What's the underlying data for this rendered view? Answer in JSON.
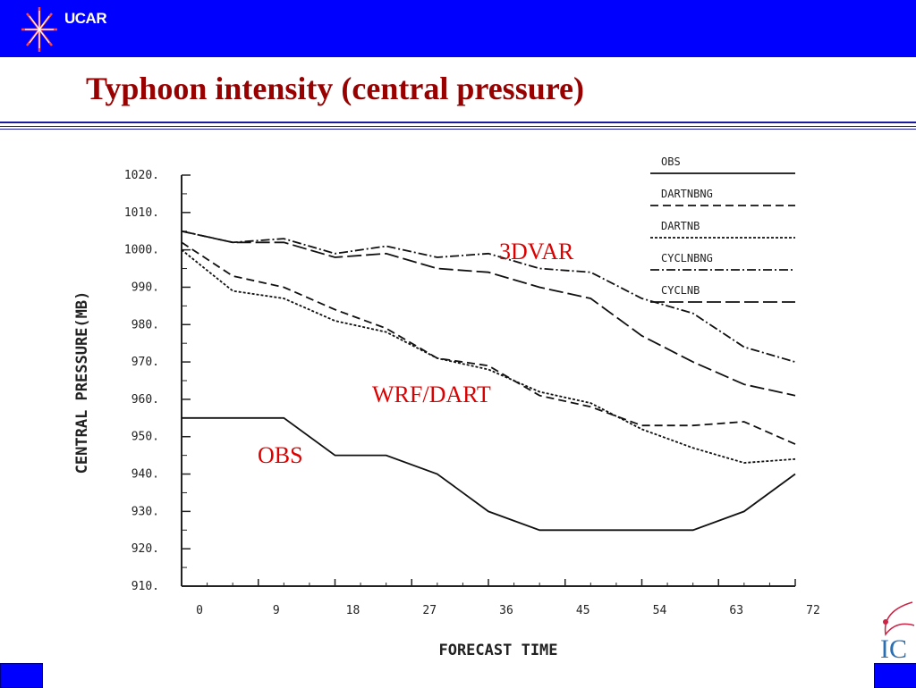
{
  "header": {
    "logo_text": "UCAR",
    "bar_color": "#0000ff"
  },
  "title": "Typhoon intensity (central pressure)",
  "colors": {
    "title": "#990000",
    "annotation": "#dd0000",
    "accent_blue": "#0000ff"
  },
  "corner_logo": {
    "text": "IC"
  },
  "chart_data": {
    "type": "line",
    "xlabel": "FORECAST TIME",
    "ylabel": "CENTRAL PRESSURE(MB)",
    "xlim": [
      0,
      72
    ],
    "ylim": [
      910,
      1020
    ],
    "xticks": [
      "0",
      "9",
      "18",
      "27",
      "36",
      "45",
      "54",
      "63",
      "72"
    ],
    "yticks": [
      "1020.",
      "1010.",
      "1000.",
      "990.",
      "980.",
      "970.",
      "960.",
      "950.",
      "940.",
      "930.",
      "920.",
      "910."
    ],
    "grid": false,
    "legend_position": "top-right",
    "series": [
      {
        "name": "OBS",
        "style": "solid",
        "x": [
          0,
          6,
          12,
          18,
          24,
          30,
          36,
          42,
          48,
          54,
          60,
          66,
          72
        ],
        "y": [
          955,
          955,
          955,
          945,
          945,
          940,
          930,
          925,
          925,
          925,
          925,
          930,
          940
        ]
      },
      {
        "name": "DARTNBNG",
        "style": "dashed",
        "x": [
          0,
          6,
          12,
          18,
          24,
          30,
          36,
          42,
          48,
          54,
          60,
          66,
          72
        ],
        "y": [
          1002,
          993,
          990,
          984,
          979,
          971,
          969,
          961,
          958,
          953,
          953,
          954,
          948
        ]
      },
      {
        "name": "DARTNB",
        "style": "dotted",
        "x": [
          0,
          6,
          12,
          18,
          24,
          30,
          36,
          42,
          48,
          54,
          60,
          66,
          72
        ],
        "y": [
          1000,
          989,
          987,
          981,
          978,
          971,
          968,
          962,
          959,
          952,
          947,
          943,
          944
        ]
      },
      {
        "name": "CYCLNBNG",
        "style": "dashdot",
        "x": [
          0,
          6,
          12,
          18,
          24,
          30,
          36,
          42,
          48,
          54,
          60,
          66,
          72
        ],
        "y": [
          1005,
          1002,
          1003,
          999,
          1001,
          998,
          999,
          995,
          994,
          987,
          983,
          974,
          970
        ]
      },
      {
        "name": "CYCLNB",
        "style": "longdash",
        "x": [
          0,
          6,
          12,
          18,
          24,
          30,
          36,
          42,
          48,
          54,
          60,
          66,
          72
        ],
        "y": [
          1005,
          1002,
          1002,
          998,
          999,
          995,
          994,
          990,
          987,
          977,
          970,
          964,
          961
        ]
      }
    ],
    "annotations": [
      {
        "text": "3DVAR"
      },
      {
        "text": "WRF/DART"
      },
      {
        "text": "OBS"
      }
    ]
  }
}
